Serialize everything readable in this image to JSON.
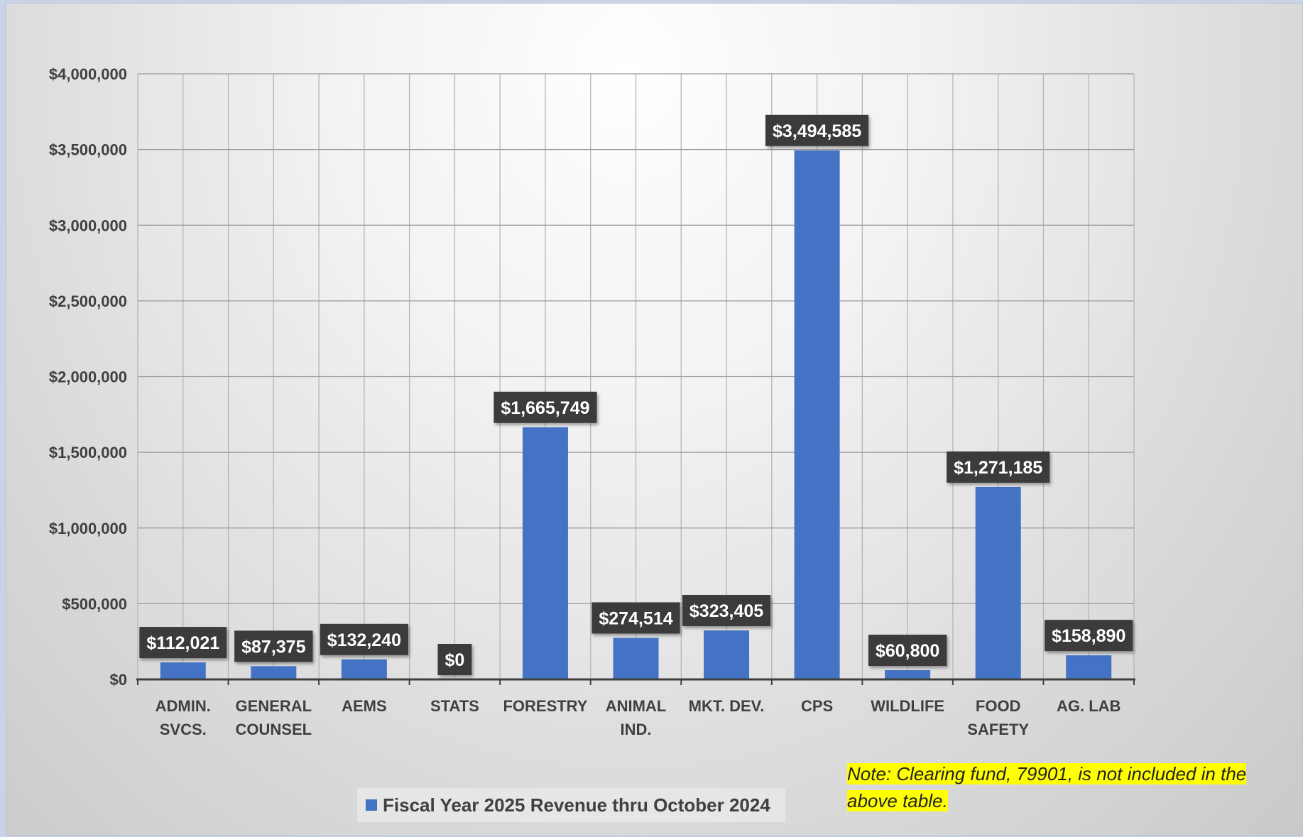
{
  "chart_data": {
    "type": "bar",
    "categories": [
      [
        "ADMIN.",
        "SVCS."
      ],
      [
        "GENERAL",
        "COUNSEL"
      ],
      [
        "AEMS"
      ],
      [
        "STATS"
      ],
      [
        "FORESTRY"
      ],
      [
        "ANIMAL",
        "IND."
      ],
      [
        "MKT. DEV."
      ],
      [
        "CPS"
      ],
      [
        "WILDLIFE"
      ],
      [
        "FOOD",
        "SAFETY"
      ],
      [
        "AG. LAB"
      ]
    ],
    "series": [
      {
        "name": "Fiscal Year 2025 Revenue thru October 2024",
        "color": "#4472c4",
        "values": [
          112021,
          87375,
          132240,
          0,
          1665749,
          274514,
          323405,
          3494585,
          60800,
          1271185,
          158890
        ],
        "data_labels": [
          "$112,021",
          "$87,375",
          "$132,240",
          "$0",
          "$1,665,749",
          "$274,514",
          "$323,405",
          "$3,494,585",
          "$60,800",
          "$1,271,185",
          "$158,890"
        ]
      }
    ],
    "ylim": [
      0,
      4000000
    ],
    "yticks": [
      0,
      500000,
      1000000,
      1500000,
      2000000,
      2500000,
      3000000,
      3500000,
      4000000
    ],
    "ytick_labels": [
      "$0",
      "$500,000",
      "$1,000,000",
      "$1,500,000",
      "$2,000,000",
      "$2,500,000",
      "$3,000,000",
      "$3,500,000",
      "$4,000,000"
    ],
    "grid": true,
    "legend_position": "bottom"
  },
  "legend": {
    "label": "Fiscal Year 2025 Revenue thru October 2024"
  },
  "note": "Note: Clearing fund, 79901, is not included in the above table."
}
